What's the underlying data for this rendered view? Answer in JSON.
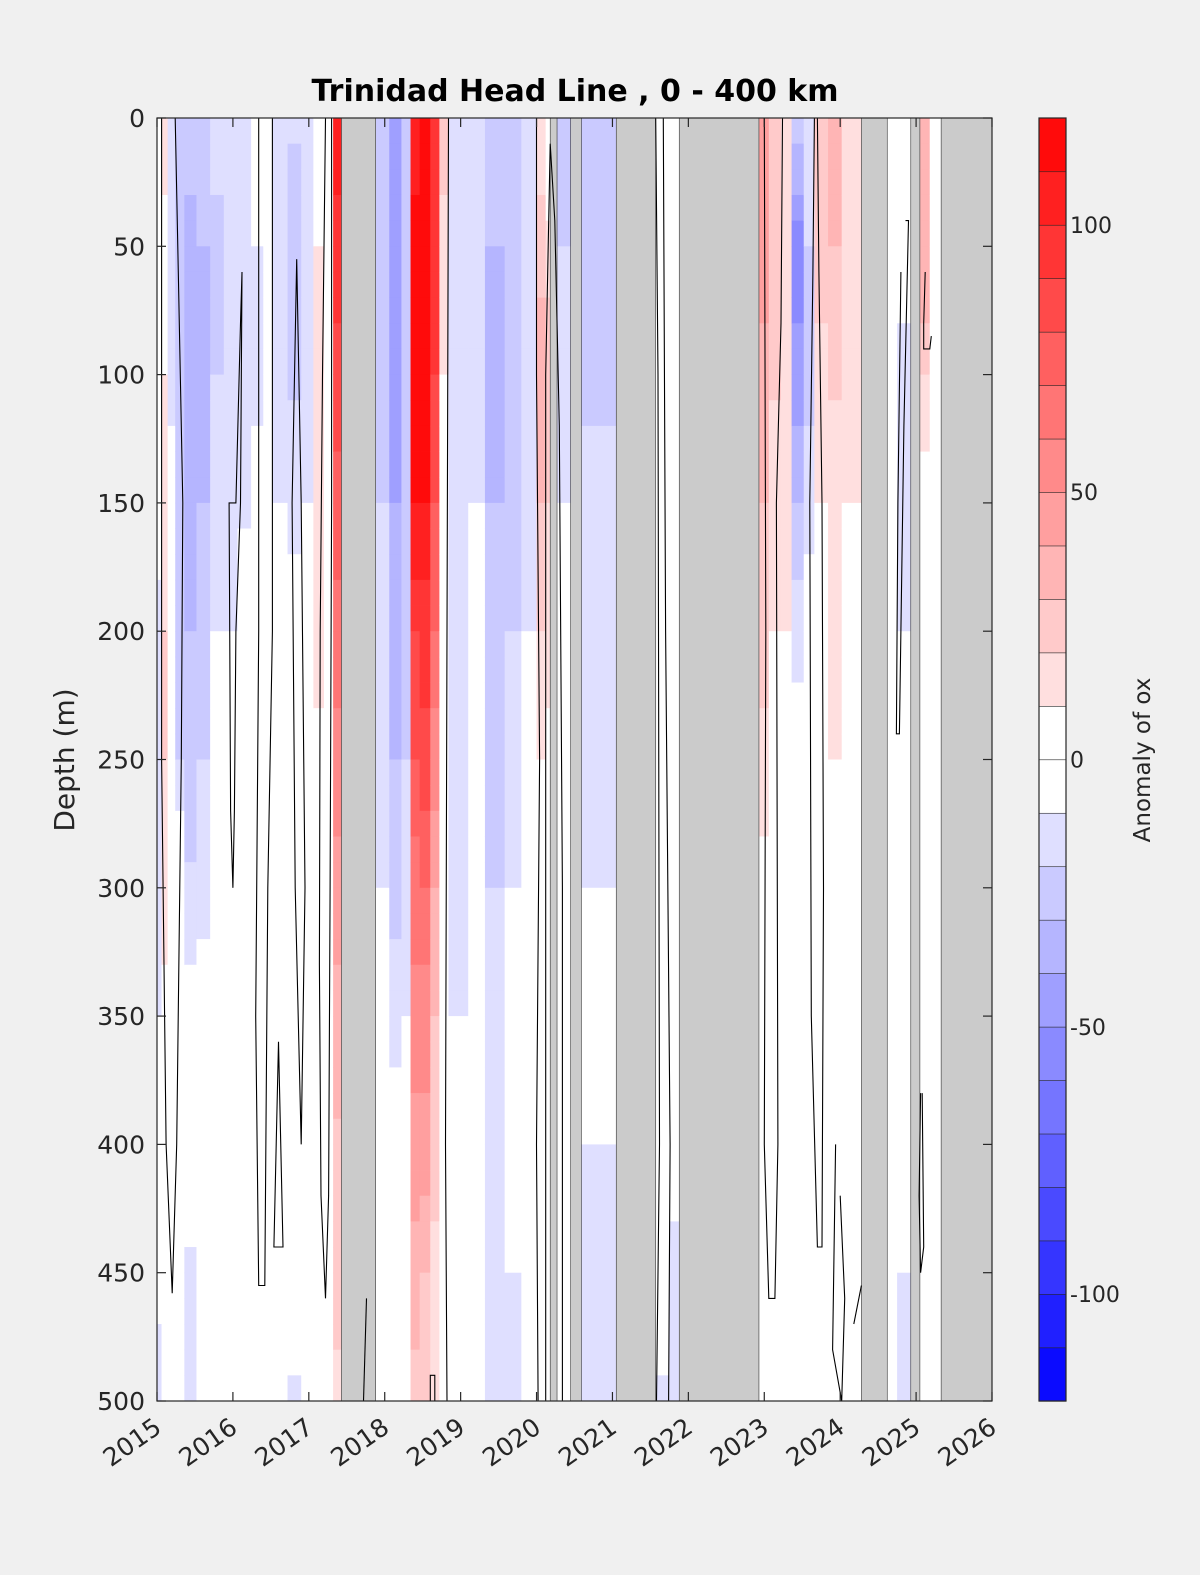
{
  "chart_data": {
    "type": "heatmap",
    "title": "Trinidad Head Line , 0 - 400 km",
    "xlabel": "",
    "ylabel": "Depth (m)",
    "xlim": [
      2015,
      2026
    ],
    "ylim": [
      0,
      500
    ],
    "y_reversed": true,
    "x_ticks": [
      2015,
      2016,
      2017,
      2018,
      2019,
      2020,
      2021,
      2022,
      2023,
      2024,
      2025,
      2026
    ],
    "y_ticks": [
      0,
      50,
      100,
      150,
      200,
      250,
      300,
      350,
      400,
      450,
      500
    ],
    "colorbar": {
      "label": "Anomaly of ox",
      "range": [
        -120,
        120
      ],
      "ticks": [
        -100,
        -50,
        0,
        50,
        100
      ],
      "levels": 24
    },
    "colors": {
      "negative_max": "#0000ff",
      "zero": "#ffffff",
      "positive_max": "#ff0000",
      "missing_data": "#cbcbcb",
      "background": "#f0f0f0",
      "contour": "#000000"
    },
    "missing_data_periods": [
      [
        2017.43,
        2017.88
      ],
      [
        2021.05,
        2021.57
      ],
      [
        2021.88,
        2022.93
      ],
      [
        2024.28,
        2024.62
      ],
      [
        2024.93,
        2025.05
      ],
      [
        2025.33,
        2026.0
      ],
      [
        2020.18,
        2020.27
      ],
      [
        2020.45,
        2020.59
      ]
    ],
    "columns": [
      {
        "t0": 2015.0,
        "t1": 2015.06,
        "values": [
          -5,
          -5,
          -5,
          -8,
          -12,
          -18,
          -18,
          -10,
          -5,
          -5,
          -20
        ]
      },
      {
        "t0": 2015.06,
        "t1": 2015.14,
        "values": [
          12,
          8,
          10,
          18,
          20,
          20,
          14,
          8,
          0,
          0,
          -5
        ]
      },
      {
        "t0": 2015.14,
        "t1": 2015.24,
        "values": [
          -15,
          -20,
          -15,
          -5,
          5,
          8,
          5,
          0,
          0,
          -5,
          -10
        ]
      },
      {
        "t0": 2015.24,
        "t1": 2015.36,
        "values": [
          -20,
          -25,
          -30,
          -30,
          -25,
          -20,
          0,
          0,
          0,
          0,
          -10
        ]
      },
      {
        "t0": 2015.36,
        "t1": 2015.52,
        "values": [
          -25,
          -35,
          -40,
          -35,
          -30,
          -25,
          -18,
          -5,
          0,
          -12,
          -12
        ]
      },
      {
        "t0": 2015.52,
        "t1": 2015.7,
        "values": [
          -20,
          -30,
          -35,
          -30,
          -25,
          -20,
          -15,
          0,
          0,
          -10,
          -10
        ]
      },
      {
        "t0": 2015.7,
        "t1": 2015.88,
        "values": [
          -15,
          -25,
          -20,
          -15,
          -10,
          -5,
          0,
          0,
          0,
          -5,
          -5
        ]
      },
      {
        "t0": 2015.88,
        "t1": 2016.06,
        "values": [
          -18,
          -20,
          -20,
          -15,
          -10,
          0,
          0,
          0,
          0,
          0,
          -5
        ]
      },
      {
        "t0": 2016.06,
        "t1": 2016.24,
        "values": [
          -15,
          -20,
          -18,
          -12,
          -5,
          0,
          0,
          0,
          0,
          0,
          0
        ]
      },
      {
        "t0": 2016.24,
        "t1": 2016.4,
        "values": [
          -5,
          -10,
          -12,
          -8,
          0,
          0,
          0,
          0,
          0,
          0,
          -5
        ]
      },
      {
        "t0": 2016.4,
        "t1": 2016.52,
        "values": [
          10,
          5,
          0,
          0,
          0,
          0,
          0,
          0,
          0,
          0,
          -10
        ]
      },
      {
        "t0": 2016.52,
        "t1": 2016.72,
        "values": [
          -10,
          -15,
          -12,
          -10,
          -5,
          0,
          0,
          0,
          0,
          0,
          -5
        ]
      },
      {
        "t0": 2016.72,
        "t1": 2016.9,
        "values": [
          -18,
          -25,
          -22,
          -15,
          -5,
          0,
          0,
          0,
          0,
          0,
          -12
        ]
      },
      {
        "t0": 2016.9,
        "t1": 2017.06,
        "values": [
          -10,
          -20,
          -15,
          -10,
          5,
          10,
          5,
          0,
          0,
          0,
          -10
        ]
      },
      {
        "t0": 2017.06,
        "t1": 2017.2,
        "values": [
          5,
          10,
          15,
          18,
          12,
          8,
          5,
          0,
          0,
          0,
          0
        ]
      },
      {
        "t0": 2017.2,
        "t1": 2017.32,
        "values": [
          -5,
          -5,
          0,
          0,
          0,
          0,
          0,
          0,
          0,
          0,
          0
        ]
      },
      {
        "t0": 2017.32,
        "t1": 2017.43,
        "values": [
          105,
          95,
          85,
          75,
          65,
          55,
          45,
          35,
          28,
          22,
          18
        ]
      },
      {
        "t0": 2017.88,
        "t1": 2018.06,
        "values": [
          -20,
          -25,
          -25,
          -20,
          -18,
          -15,
          -10,
          -5,
          0,
          0,
          -10
        ]
      },
      {
        "t0": 2018.06,
        "t1": 2018.22,
        "values": [
          -40,
          -50,
          -45,
          -40,
          -35,
          -30,
          -25,
          -15,
          -5,
          -5,
          -10
        ]
      },
      {
        "t0": 2018.22,
        "t1": 2018.34,
        "values": [
          -20,
          -30,
          -30,
          -28,
          -25,
          -20,
          -15,
          -10,
          0,
          0,
          0
        ]
      },
      {
        "t0": 2018.34,
        "t1": 2018.46,
        "values": [
          100,
          115,
          115,
          110,
          90,
          80,
          65,
          55,
          45,
          35,
          25
        ]
      },
      {
        "t0": 2018.46,
        "t1": 2018.6,
        "values": [
          115,
          120,
          118,
          110,
          95,
          85,
          70,
          55,
          45,
          30,
          20
        ]
      },
      {
        "t0": 2018.6,
        "t1": 2018.72,
        "values": [
          90,
          95,
          90,
          80,
          70,
          55,
          40,
          30,
          25,
          15,
          10
        ]
      },
      {
        "t0": 2018.72,
        "t1": 2018.84,
        "values": [
          30,
          15,
          10,
          5,
          5,
          5,
          0,
          0,
          0,
          0,
          0
        ]
      },
      {
        "t0": 2018.84,
        "t1": 2019.1,
        "values": [
          -15,
          -20,
          -20,
          -15,
          -15,
          -15,
          -15,
          -10,
          -5,
          0,
          -5
        ]
      },
      {
        "t0": 2019.1,
        "t1": 2019.32,
        "values": [
          -18,
          -15,
          -12,
          -10,
          -10,
          -10,
          -10,
          -8,
          -5,
          0,
          -10
        ]
      },
      {
        "t0": 2019.32,
        "t1": 2019.58,
        "values": [
          -20,
          -30,
          -35,
          -30,
          -25,
          -22,
          -20,
          -15,
          -10,
          -12,
          -15
        ]
      },
      {
        "t0": 2019.58,
        "t1": 2019.8,
        "values": [
          -20,
          -25,
          -28,
          -25,
          -20,
          -15,
          -10,
          -8,
          -5,
          -10,
          -20
        ]
      },
      {
        "t0": 2019.8,
        "t1": 2020.0,
        "values": [
          -12,
          -18,
          -15,
          -12,
          -10,
          -8,
          -5,
          -5,
          0,
          0,
          -10
        ]
      },
      {
        "t0": 2020.0,
        "t1": 2020.12,
        "values": [
          10,
          25,
          35,
          30,
          20,
          10,
          0,
          0,
          0,
          0,
          -5
        ]
      },
      {
        "t0": 2020.12,
        "t1": 2020.18,
        "values": [
          -10,
          15,
          25,
          20,
          15,
          5,
          0,
          0,
          0,
          0,
          -5
        ]
      },
      {
        "t0": 2020.27,
        "t1": 2020.45,
        "values": [
          -25,
          -20,
          -15,
          -10,
          -10,
          -8,
          -5,
          -5,
          -5,
          0,
          -5
        ]
      },
      {
        "t0": 2020.59,
        "t1": 2021.05,
        "values": [
          -20,
          -25,
          -22,
          -18,
          -15,
          -12,
          -10,
          -8,
          -10,
          -12,
          -20
        ]
      },
      {
        "t0": 2021.57,
        "t1": 2021.75,
        "values": [
          0,
          0,
          0,
          0,
          0,
          0,
          0,
          0,
          0,
          0,
          -12
        ]
      },
      {
        "t0": 2021.75,
        "t1": 2021.88,
        "values": [
          -10,
          -5,
          0,
          0,
          0,
          0,
          0,
          0,
          0,
          -15,
          -15
        ]
      },
      {
        "t0": 2022.93,
        "t1": 2023.06,
        "values": [
          45,
          45,
          35,
          30,
          25,
          15,
          5,
          0,
          0,
          0,
          0
        ]
      },
      {
        "t0": 2023.06,
        "t1": 2023.22,
        "values": [
          30,
          28,
          22,
          15,
          10,
          5,
          5,
          0,
          0,
          0,
          -5
        ]
      },
      {
        "t0": 2023.22,
        "t1": 2023.36,
        "values": [
          10,
          15,
          15,
          10,
          10,
          5,
          0,
          0,
          0,
          0,
          0
        ]
      },
      {
        "t0": 2023.36,
        "t1": 2023.52,
        "values": [
          -20,
          -60,
          -45,
          -30,
          -15,
          -5,
          0,
          0,
          0,
          0,
          -5
        ]
      },
      {
        "t0": 2023.52,
        "t1": 2023.66,
        "values": [
          -10,
          -20,
          -25,
          -15,
          -5,
          0,
          0,
          0,
          0,
          0,
          -8
        ]
      },
      {
        "t0": 2023.66,
        "t1": 2023.84,
        "values": [
          30,
          25,
          15,
          10,
          5,
          5,
          5,
          0,
          0,
          0,
          -10
        ]
      },
      {
        "t0": 2023.84,
        "t1": 2024.02,
        "values": [
          35,
          30,
          22,
          15,
          15,
          10,
          5,
          0,
          0,
          0,
          0
        ]
      },
      {
        "t0": 2024.02,
        "t1": 2024.28,
        "values": [
          15,
          15,
          10,
          10,
          5,
          5,
          0,
          0,
          0,
          0,
          0
        ]
      },
      {
        "t0": 2024.62,
        "t1": 2024.75,
        "values": [
          10,
          5,
          5,
          0,
          0,
          0,
          0,
          0,
          0,
          -10,
          -10
        ]
      },
      {
        "t0": 2024.75,
        "t1": 2024.93,
        "values": [
          0,
          -5,
          -15,
          -15,
          -10,
          -5,
          0,
          0,
          0,
          -10,
          -15
        ]
      },
      {
        "t0": 2025.05,
        "t1": 2025.18,
        "values": [
          30,
          40,
          20,
          0,
          0,
          0,
          0,
          0,
          0,
          0,
          0
        ]
      },
      {
        "t0": 2025.18,
        "t1": 2025.33,
        "values": [
          0,
          0,
          0,
          0,
          0,
          0,
          0,
          0,
          0,
          0,
          0
        ]
      }
    ],
    "contours_zero": [
      [
        [
          2015.06,
          0
        ],
        [
          2015.06,
          100
        ],
        [
          2015.06,
          250
        ],
        [
          2015.12,
          400
        ],
        [
          2015.2,
          458
        ],
        [
          2015.26,
          400
        ],
        [
          2015.32,
          250
        ],
        [
          2015.34,
          150
        ],
        [
          2015.28,
          60
        ],
        [
          2015.24,
          0
        ]
      ],
      [
        [
          2016.12,
          60
        ],
        [
          2016.1,
          150
        ],
        [
          2016.04,
          200
        ],
        [
          2016.02,
          270
        ],
        [
          2016.0,
          300
        ],
        [
          2015.97,
          270
        ],
        [
          2015.95,
          150
        ],
        [
          2016.04,
          150
        ],
        [
          2016.1,
          80
        ],
        [
          2016.12,
          60
        ]
      ],
      [
        [
          2016.34,
          0
        ],
        [
          2016.34,
          200
        ],
        [
          2016.3,
          350
        ],
        [
          2016.34,
          455
        ],
        [
          2016.42,
          455
        ],
        [
          2016.46,
          300
        ],
        [
          2016.52,
          200
        ],
        [
          2016.52,
          0
        ]
      ],
      [
        [
          2016.6,
          360
        ],
        [
          2016.54,
          440
        ],
        [
          2016.66,
          440
        ],
        [
          2016.6,
          360
        ]
      ],
      [
        [
          2016.84,
          55
        ],
        [
          2016.78,
          150
        ],
        [
          2016.82,
          300
        ],
        [
          2016.9,
          400
        ],
        [
          2016.95,
          300
        ],
        [
          2016.9,
          150
        ],
        [
          2016.84,
          55
        ]
      ],
      [
        [
          2017.22,
          0
        ],
        [
          2017.18,
          100
        ],
        [
          2017.15,
          200
        ],
        [
          2017.14,
          330
        ],
        [
          2017.16,
          420
        ],
        [
          2017.22,
          460
        ],
        [
          2017.26,
          420
        ],
        [
          2017.28,
          300
        ],
        [
          2017.3,
          150
        ],
        [
          2017.3,
          0
        ]
      ],
      [
        [
          2017.72,
          500
        ],
        [
          2017.76,
          460
        ]
      ],
      [
        [
          2018.84,
          0
        ],
        [
          2018.82,
          200
        ],
        [
          2018.8,
          400
        ],
        [
          2018.82,
          500
        ]
      ],
      [
        [
          2018.6,
          500
        ],
        [
          2018.6,
          490
        ],
        [
          2018.66,
          490
        ],
        [
          2018.66,
          500
        ]
      ],
      [
        [
          2020.0,
          0
        ],
        [
          2020.0,
          100
        ],
        [
          2020.04,
          250
        ],
        [
          2020.0,
          400
        ],
        [
          2020.02,
          500
        ]
      ],
      [
        [
          2020.12,
          500
        ],
        [
          2020.12,
          100
        ],
        [
          2020.18,
          10
        ],
        [
          2020.24,
          40
        ],
        [
          2020.3,
          120
        ],
        [
          2020.34,
          300
        ],
        [
          2020.34,
          500
        ]
      ],
      [
        [
          2021.57,
          0
        ],
        [
          2021.6,
          100
        ],
        [
          2021.62,
          400
        ],
        [
          2021.58,
          500
        ]
      ],
      [
        [
          2021.67,
          0
        ],
        [
          2021.7,
          200
        ],
        [
          2021.76,
          400
        ],
        [
          2021.74,
          500
        ]
      ],
      [
        [
          2023.0,
          0
        ],
        [
          2023.02,
          200
        ],
        [
          2023.0,
          400
        ],
        [
          2023.06,
          460
        ],
        [
          2023.14,
          460
        ],
        [
          2023.18,
          400
        ],
        [
          2023.16,
          150
        ],
        [
          2023.22,
          80
        ],
        [
          2023.24,
          0
        ]
      ],
      [
        [
          2023.66,
          0
        ],
        [
          2023.64,
          60
        ],
        [
          2023.6,
          150
        ],
        [
          2023.62,
          350
        ],
        [
          2023.7,
          440
        ],
        [
          2023.76,
          440
        ],
        [
          2023.78,
          300
        ],
        [
          2023.76,
          150
        ],
        [
          2023.72,
          60
        ],
        [
          2023.7,
          0
        ]
      ],
      [
        [
          2023.94,
          400
        ],
        [
          2023.9,
          480
        ],
        [
          2024.02,
          500
        ],
        [
          2024.06,
          460
        ],
        [
          2024.0,
          420
        ]
      ],
      [
        [
          2024.18,
          470
        ],
        [
          2024.28,
          455
        ]
      ],
      [
        [
          2024.8,
          60
        ],
        [
          2024.76,
          150
        ],
        [
          2024.74,
          240
        ],
        [
          2024.78,
          240
        ],
        [
          2024.84,
          120
        ],
        [
          2024.9,
          40
        ],
        [
          2024.86,
          40
        ]
      ],
      [
        [
          2025.12,
          60
        ],
        [
          2025.1,
          80
        ],
        [
          2025.1,
          90
        ],
        [
          2025.18,
          90
        ],
        [
          2025.2,
          85
        ]
      ],
      [
        [
          2025.06,
          380
        ],
        [
          2025.04,
          420
        ],
        [
          2025.06,
          450
        ],
        [
          2025.1,
          440
        ],
        [
          2025.08,
          380
        ]
      ]
    ]
  }
}
